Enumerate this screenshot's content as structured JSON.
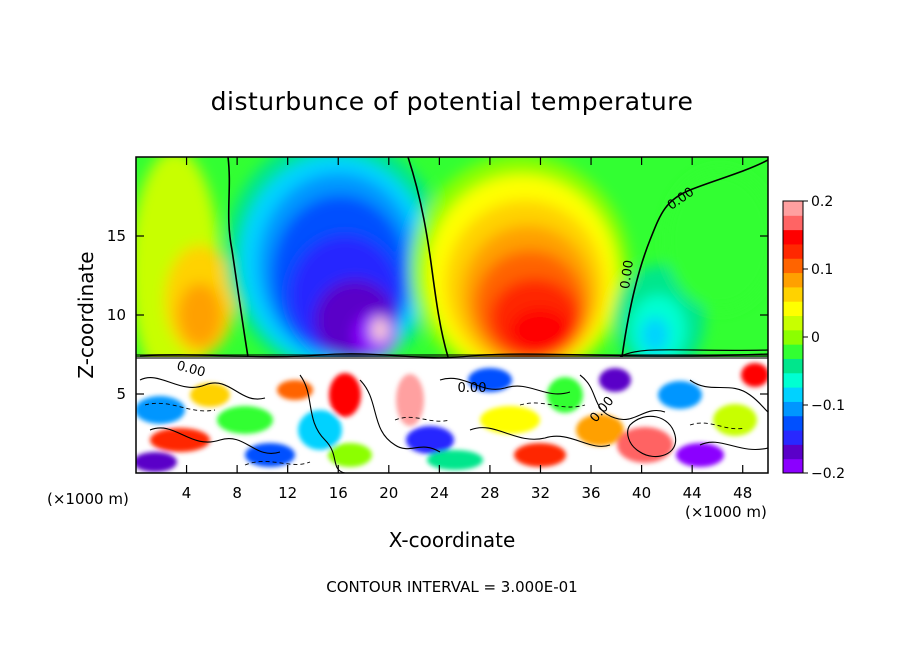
{
  "chart_data": {
    "type": "heatmap",
    "title": "disturbunce of potential temperature",
    "xlabel": "X-coordinate",
    "ylabel": "Z-coordinate",
    "x_unit_note": "(×1000 m)",
    "x_unit_note_right": "(×1000 m)",
    "footer": "CONTOUR INTERVAL = 3.000E-01",
    "xlim": [
      0,
      50
    ],
    "ylim": [
      0,
      20
    ],
    "x_ticks": [
      4,
      8,
      12,
      16,
      20,
      24,
      28,
      32,
      36,
      40,
      44,
      48
    ],
    "y_ticks": [
      5,
      10,
      15
    ],
    "colorbar": {
      "range": [
        -0.2,
        0.2
      ],
      "ticks": [
        {
          "value": 0.2,
          "label": "0.2"
        },
        {
          "value": 0.1,
          "label": "0.1"
        },
        {
          "value": 0,
          "label": "0"
        },
        {
          "value": -0.1,
          "label": "−0.1"
        },
        {
          "value": -0.2,
          "label": "−0.2"
        }
      ],
      "colors": [
        "#8b00ff",
        "#5a00c8",
        "#2828ff",
        "#0050ff",
        "#0096ff",
        "#00d2ff",
        "#00ffd2",
        "#00e68c",
        "#32ff32",
        "#8cff00",
        "#c8ff00",
        "#ffff00",
        "#ffd200",
        "#ffa000",
        "#ff6400",
        "#ff2800",
        "#ff0000",
        "#ff6464",
        "#ffa0a0"
      ]
    },
    "contour_labels": [
      "0.00",
      "0.00",
      "0.00",
      "0.00",
      "0.00"
    ],
    "features": [
      {
        "name": "cold anomaly",
        "x": 16,
        "z": 13,
        "value": -0.2
      },
      {
        "name": "warm anomaly",
        "x": 31,
        "z": 11,
        "value": 0.15
      },
      {
        "name": "warm anomaly",
        "x": 5,
        "z": 10,
        "value": 0.1
      },
      {
        "name": "cold anomaly",
        "x": 41,
        "z": 9,
        "value": -0.1
      }
    ]
  }
}
